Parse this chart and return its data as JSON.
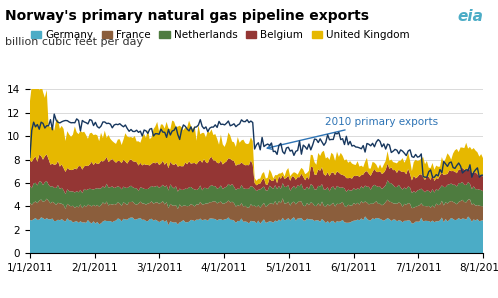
{
  "title": "Norway's primary natural gas pipeline exports",
  "subtitle": "billion cubic feet per day",
  "ylim": [
    0,
    14
  ],
  "yticks": [
    0,
    2,
    4,
    6,
    8,
    10,
    12,
    14
  ],
  "xtick_labels": [
    "1/1/2011",
    "2/1/2011",
    "3/1/2011",
    "4/1/2011",
    "5/1/2011",
    "6/1/2011",
    "7/1/2011",
    "8/1/2011"
  ],
  "colors": {
    "Germany": "#4bacc6",
    "France": "#8B5E3C",
    "Netherlands": "#4e7c3f",
    "Belgium": "#943634",
    "United Kingdom": "#e6b800"
  },
  "line_color": "#17375E",
  "annotation_text": "2010 primary exports",
  "annotation_color": "#2E74B5",
  "background_color": "#ffffff",
  "grid_color": "#cccccc",
  "title_fontsize": 10,
  "subtitle_fontsize": 8,
  "legend_fontsize": 7.5,
  "tick_fontsize": 7.5
}
